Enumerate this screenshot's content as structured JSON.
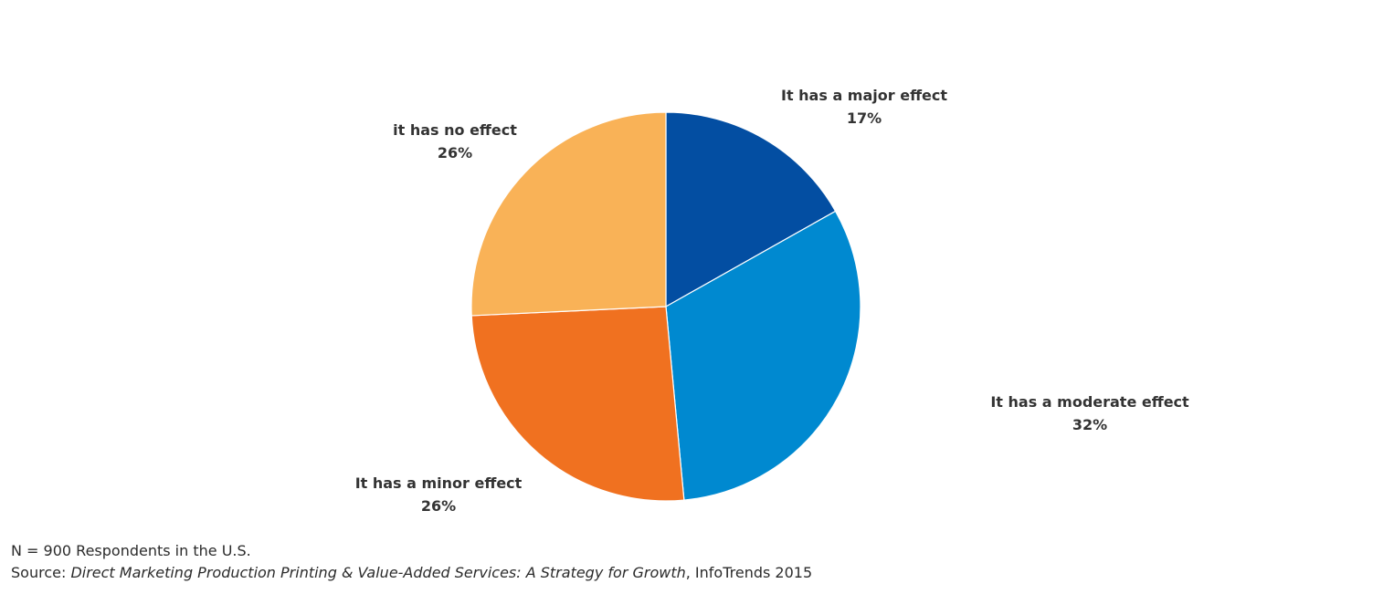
{
  "chart_data": {
    "type": "pie",
    "start_angle_deg": 0,
    "direction": "clockwise",
    "slices": [
      {
        "label": "It has a major effect",
        "value": 17,
        "value_label": "17%",
        "color": "#034EA2"
      },
      {
        "label": "It has a moderate effect",
        "value": 32,
        "value_label": "32%",
        "color": "#0089D0"
      },
      {
        "label": "It has a minor effect",
        "value": 26,
        "value_label": "26%",
        "color": "#F07120"
      },
      {
        "label": "it has no effect",
        "value": 26,
        "value_label": "26%",
        "color": "#F9B257"
      }
    ]
  },
  "footnote": {
    "sample": "N = 900 Respondents in  the U.S.",
    "source_prefix": "Source: ",
    "source_title": "Direct Marketing Production Printing & Value-Added Services: A Strategy for Growth",
    "source_suffix": ", InfoTrends 2015"
  }
}
